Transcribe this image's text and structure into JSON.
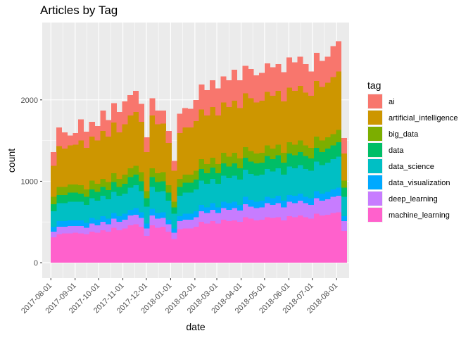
{
  "chart_data": {
    "type": "area",
    "stacked": true,
    "render": "weekly stacked histogram",
    "title": "Articles by Tag",
    "xlabel": "date",
    "ylabel": "count",
    "legend_title": "tag",
    "legend_position": "right",
    "grid": true,
    "ylim": [
      -190,
      2950
    ],
    "xlim": [
      "2017-07-21",
      "2018-08-17"
    ],
    "y_ticks": [
      0,
      1000,
      2000
    ],
    "x_ticks": [
      "2017-08-01",
      "2017-09-01",
      "2017-10-01",
      "2017-11-01",
      "2017-12-01",
      "2018-01-01",
      "2018-02-01",
      "2018-03-01",
      "2018-04-01",
      "2018-05-01",
      "2018-06-01",
      "2018-07-01",
      "2018-08-01"
    ],
    "series_order_bottom_to_top": [
      "machine_learning",
      "deep_learning",
      "data_visualization",
      "data_science",
      "data",
      "big_data",
      "artificial_intelligence",
      "ai"
    ],
    "legend_order": [
      "ai",
      "artificial_intelligence",
      "big_data",
      "data",
      "data_science",
      "data_visualization",
      "deep_learning",
      "machine_learning"
    ],
    "colors": {
      "ai": "#F8766D",
      "artificial_intelligence": "#CD9600",
      "big_data": "#7CAE00",
      "data": "#00BE67",
      "data_science": "#00BFC4",
      "data_visualization": "#00A9FF",
      "deep_learning": "#C77CFF",
      "machine_learning": "#FF61CC"
    },
    "x": [
      "2017-08-01",
      "2017-08-08",
      "2017-08-15",
      "2017-08-22",
      "2017-08-29",
      "2017-09-05",
      "2017-09-12",
      "2017-09-19",
      "2017-09-26",
      "2017-10-03",
      "2017-10-10",
      "2017-10-17",
      "2017-10-24",
      "2017-10-31",
      "2017-11-07",
      "2017-11-14",
      "2017-11-21",
      "2017-11-28",
      "2017-12-05",
      "2017-12-12",
      "2017-12-19",
      "2017-12-26",
      "2018-01-02",
      "2018-01-09",
      "2018-01-16",
      "2018-01-23",
      "2018-01-30",
      "2018-02-06",
      "2018-02-13",
      "2018-02-20",
      "2018-02-27",
      "2018-03-06",
      "2018-03-13",
      "2018-03-20",
      "2018-03-27",
      "2018-04-03",
      "2018-04-10",
      "2018-04-17",
      "2018-04-24",
      "2018-05-01",
      "2018-05-08",
      "2018-05-15",
      "2018-05-22",
      "2018-05-29",
      "2018-06-05",
      "2018-06-12",
      "2018-06-19",
      "2018-06-26",
      "2018-07-03",
      "2018-07-10",
      "2018-07-17",
      "2018-07-24",
      "2018-07-31",
      "2018-08-07"
    ],
    "series": [
      {
        "name": "machine_learning",
        "values": [
          310,
          350,
          360,
          360,
          370,
          360,
          350,
          380,
          370,
          400,
          380,
          430,
          400,
          420,
          460,
          470,
          440,
          330,
          460,
          430,
          440,
          380,
          290,
          410,
          420,
          420,
          440,
          500,
          480,
          510,
          480,
          530,
          510,
          520,
          500,
          560,
          540,
          520,
          530,
          560,
          550,
          560,
          520,
          570,
          560,
          580,
          560,
          540,
          600,
          580,
          590,
          610,
          620,
          390
        ]
      },
      {
        "name": "deep_learning",
        "values": [
          70,
          90,
          80,
          90,
          80,
          90,
          80,
          100,
          90,
          100,
          90,
          110,
          100,
          110,
          120,
          120,
          110,
          90,
          120,
          110,
          110,
          90,
          80,
          100,
          110,
          110,
          120,
          130,
          130,
          140,
          130,
          140,
          140,
          150,
          140,
          160,
          150,
          150,
          150,
          170,
          160,
          170,
          160,
          180,
          170,
          180,
          170,
          170,
          190,
          180,
          190,
          200,
          200,
          120
        ]
      },
      {
        "name": "data_visualization",
        "values": [
          60,
          70,
          70,
          70,
          70,
          70,
          60,
          70,
          70,
          70,
          70,
          70,
          70,
          70,
          70,
          80,
          70,
          60,
          80,
          70,
          70,
          60,
          50,
          60,
          70,
          70,
          70,
          80,
          70,
          80,
          70,
          80,
          80,
          80,
          70,
          90,
          80,
          80,
          80,
          80,
          80,
          90,
          80,
          80,
          90,
          90,
          80,
          80,
          90,
          90,
          90,
          90,
          100,
          60
        ]
      },
      {
        "name": "data_science",
        "values": [
          190,
          220,
          220,
          230,
          230,
          230,
          220,
          240,
          230,
          250,
          240,
          260,
          250,
          250,
          270,
          280,
          260,
          210,
          270,
          260,
          260,
          230,
          180,
          250,
          260,
          260,
          270,
          300,
          290,
          300,
          290,
          320,
          310,
          320,
          310,
          330,
          320,
          320,
          320,
          340,
          330,
          340,
          320,
          350,
          340,
          350,
          340,
          340,
          360,
          350,
          360,
          370,
          380,
          240
        ]
      },
      {
        "name": "data",
        "values": [
          90,
          100,
          100,
          110,
          110,
          100,
          100,
          110,
          110,
          110,
          110,
          120,
          110,
          120,
          130,
          130,
          120,
          100,
          120,
          120,
          120,
          100,
          80,
          110,
          120,
          120,
          120,
          140,
          130,
          140,
          130,
          150,
          140,
          150,
          140,
          150,
          150,
          150,
          150,
          160,
          150,
          160,
          150,
          160,
          160,
          160,
          160,
          150,
          170,
          160,
          170,
          170,
          180,
          110
        ]
      },
      {
        "name": "big_data",
        "values": [
          90,
          100,
          100,
          100,
          100,
          100,
          90,
          110,
          100,
          100,
          100,
          110,
          100,
          110,
          110,
          110,
          110,
          90,
          110,
          110,
          110,
          90,
          70,
          100,
          100,
          100,
          110,
          120,
          110,
          120,
          110,
          130,
          120,
          130,
          120,
          130,
          130,
          120,
          120,
          130,
          130,
          130,
          120,
          140,
          130,
          140,
          130,
          130,
          140,
          140,
          140,
          140,
          150,
          90
        ]
      },
      {
        "name": "artificial_intelligence",
        "values": [
          380,
          500,
          470,
          480,
          490,
          550,
          510,
          540,
          530,
          590,
          560,
          620,
          570,
          620,
          650,
          660,
          620,
          480,
          650,
          600,
          600,
          520,
          380,
          560,
          580,
          580,
          610,
          610,
          600,
          620,
          600,
          620,
          610,
          640,
          620,
          660,
          650,
          630,
          640,
          660,
          650,
          660,
          630,
          670,
          660,
          670,
          650,
          640,
          680,
          660,
          670,
          700,
          720,
          330
        ]
      },
      {
        "name": "ai",
        "values": [
          170,
          230,
          200,
          120,
          140,
          260,
          200,
          180,
          180,
          250,
          200,
          240,
          250,
          280,
          250,
          260,
          220,
          180,
          210,
          170,
          160,
          150,
          120,
          240,
          240,
          230,
          260,
          310,
          310,
          330,
          330,
          320,
          330,
          380,
          340,
          340,
          360,
          330,
          340,
          350,
          350,
          330,
          360,
          370,
          350,
          360,
          350,
          300,
          350,
          320,
          320,
          380,
          370,
          190
        ]
      }
    ]
  },
  "legend_labels": [
    "ai",
    "artificial_intelligence",
    "big_data",
    "data",
    "data_science",
    "data_visualization",
    "deep_learning",
    "machine_learning"
  ]
}
